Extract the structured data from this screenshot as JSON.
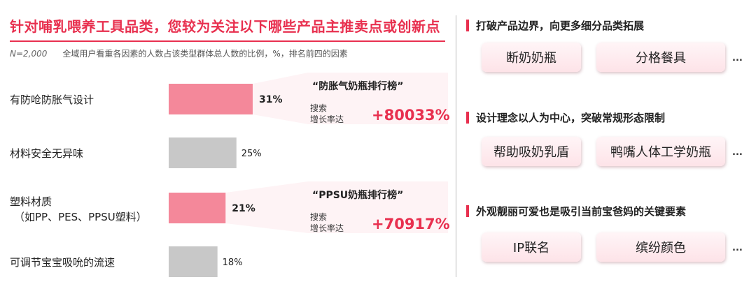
{
  "title": "针对哺乳喂养工具品类，您较为关注以下哪些产品主推卖点或创新点",
  "note": {
    "sample": "N=2,000",
    "text": "全域用户看重各因素的人数占该类型群体总人数的比例，%，排名前四的因素"
  },
  "chart_data": {
    "type": "bar",
    "orientation": "horizontal",
    "categories": [
      "有防呛防胀气设计",
      "材料安全无异味",
      "塑料材质\n（如PP、PES、PPSU塑料）",
      "可调节宝宝吸吮的流速"
    ],
    "category_lines": [
      [
        "有防呛防胀气设计"
      ],
      [
        "材料安全无异味"
      ],
      [
        "塑料材质",
        "（如PP、PES、PPSU塑料）"
      ],
      [
        "可调节宝宝吸吮的流速"
      ]
    ],
    "values": [
      31,
      25,
      21,
      18
    ],
    "value_labels": [
      "31%",
      "25%",
      "21%",
      "18%"
    ],
    "unit": "%",
    "highlight": [
      true,
      false,
      true,
      false
    ],
    "highlight_color": "#f4889a",
    "base_color": "#c8c8c8",
    "callouts": [
      {
        "bar_index": 0,
        "title": "“防胀气奶瓶排行榜”",
        "label_line1": "搜索",
        "label_line2": "增长率达",
        "value": "+80033%"
      },
      {
        "bar_index": 2,
        "title": "“PPSU奶瓶排行榜”",
        "label_line1": "搜索",
        "label_line2": "增长率达",
        "value": "+70917%"
      }
    ]
  },
  "sections": [
    {
      "heading": "打破产品边界，向更多细分品类拓展",
      "chips": [
        "断奶奶瓶",
        "分格餐具"
      ],
      "more": "..."
    },
    {
      "heading": "设计理念以人为中心，突破常规形态限制",
      "chips": [
        "帮助吸奶乳盾",
        "鸭嘴人体工学奶瓶"
      ],
      "more": "..."
    },
    {
      "heading": "外观靓丽可爱也是吸引当前宝爸妈的关键要素",
      "chips": [
        "IP联名",
        "缤纷颜色"
      ],
      "more": "..."
    }
  ],
  "colors": {
    "accent": "#e8304f",
    "highlight_bar": "#f4889a",
    "gray_bar": "#c8c8c8"
  }
}
